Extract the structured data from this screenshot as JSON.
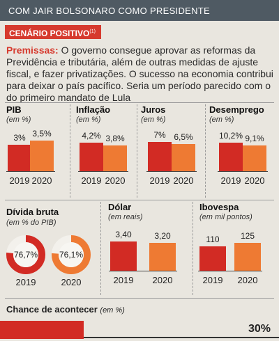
{
  "header": {
    "title": "COM JAIR BOLSONARO COMO PRESIDENTE"
  },
  "scenario": {
    "label": "CENÁRIO POSITIVO",
    "note": "(1)"
  },
  "premise": {
    "lead": "Premissas:",
    "text": " O governo consegue aprovar as reformas da Previdência e tributária, além de outras medidas de ajuste fiscal, e fazer privatizações. O sucesso na economia contribui para deixar o país pacífico. Seria um período parecido com o do primeiro mandato de Lula"
  },
  "chart_data": [
    {
      "type": "bar",
      "id": "pib",
      "title": "PIB",
      "unit": "(em %)",
      "categories": [
        "2019",
        "2020"
      ],
      "values": [
        3,
        3.5
      ],
      "labels": [
        "3%",
        "3,5%"
      ]
    },
    {
      "type": "bar",
      "id": "inflacao",
      "title": "Inflação",
      "unit": "(em %)",
      "categories": [
        "2019",
        "2020"
      ],
      "values": [
        4.2,
        3.8
      ],
      "labels": [
        "4,2%",
        "3,8%"
      ]
    },
    {
      "type": "bar",
      "id": "juros",
      "title": "Juros",
      "unit": "(em %)",
      "categories": [
        "2019",
        "2020"
      ],
      "values": [
        7,
        6.5
      ],
      "labels": [
        "7%",
        "6,5%"
      ]
    },
    {
      "type": "bar",
      "id": "desemprego",
      "title": "Desemprego",
      "unit": "(em %)",
      "categories": [
        "2019",
        "2020"
      ],
      "values": [
        10.2,
        9.1
      ],
      "labels": [
        "10,2%",
        "9,1%"
      ]
    },
    {
      "type": "pie",
      "id": "divida",
      "title": "Dívida bruta",
      "unit": "(em % do PIB)",
      "categories": [
        "2019",
        "2020"
      ],
      "values": [
        76.7,
        76.1
      ],
      "labels": [
        "76,7%",
        "76,1%"
      ]
    },
    {
      "type": "bar",
      "id": "dolar",
      "title": "Dólar",
      "unit": "(em reais)",
      "categories": [
        "2019",
        "2020"
      ],
      "values": [
        3.4,
        3.2
      ],
      "labels": [
        "3,40",
        "3,20"
      ]
    },
    {
      "type": "bar",
      "id": "ibovespa",
      "title": "Ibovespa",
      "unit": "(em mil pontos)",
      "categories": [
        "2019",
        "2020"
      ],
      "values": [
        110,
        125
      ],
      "labels": [
        "110",
        "125"
      ]
    }
  ],
  "chance": {
    "label": "Chance de acontecer",
    "unit": "(em %)",
    "value": 30,
    "display": "30%"
  },
  "colors": {
    "y2019": "#d22b24",
    "y2020": "#ee7a33",
    "accent": "#d63a2e",
    "header": "#4f5a63"
  }
}
